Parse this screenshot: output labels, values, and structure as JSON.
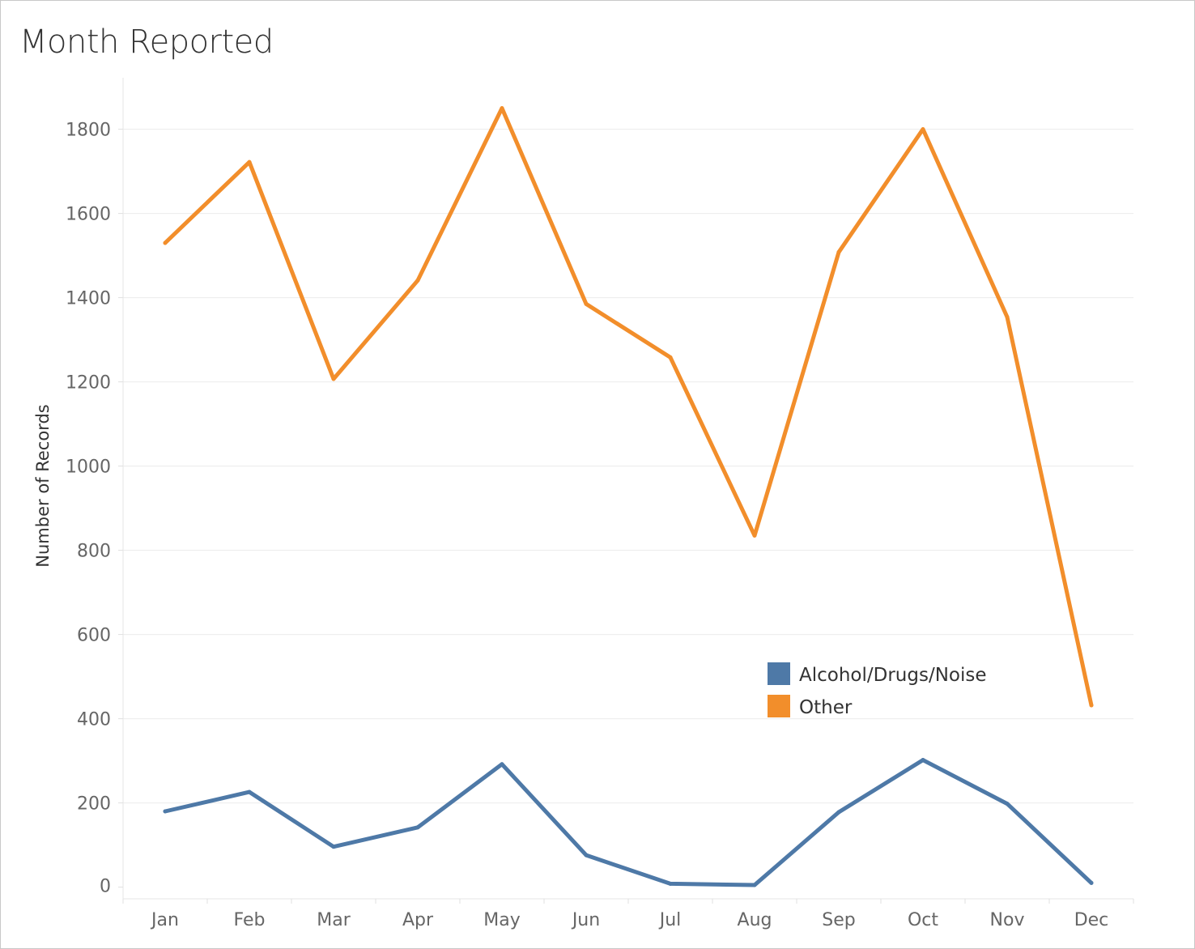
{
  "chart_data": {
    "type": "line",
    "title": "Month Reported",
    "xlabel": "",
    "ylabel": "Number of Records",
    "categories": [
      "Jan",
      "Feb",
      "Mar",
      "Apr",
      "May",
      "Jun",
      "Jul",
      "Aug",
      "Sep",
      "Oct",
      "Nov",
      "Dec"
    ],
    "yticks": [
      0,
      200,
      400,
      600,
      800,
      1000,
      1200,
      1400,
      1600,
      1800
    ],
    "ylim": [
      0,
      1950
    ],
    "grid": true,
    "legend_position": "inside-bottom-right",
    "series": [
      {
        "name": "Alcohol/Drugs/Noise",
        "color": "#4e79a7",
        "values": [
          180,
          226,
          96,
          142,
          292,
          76,
          8,
          5,
          178,
          302,
          198,
          10
        ]
      },
      {
        "name": "Other",
        "color": "#f28e2b",
        "values": [
          1530,
          1722,
          1207,
          1441,
          1850,
          1385,
          1258,
          835,
          1508,
          1800,
          1354,
          432
        ]
      }
    ]
  }
}
